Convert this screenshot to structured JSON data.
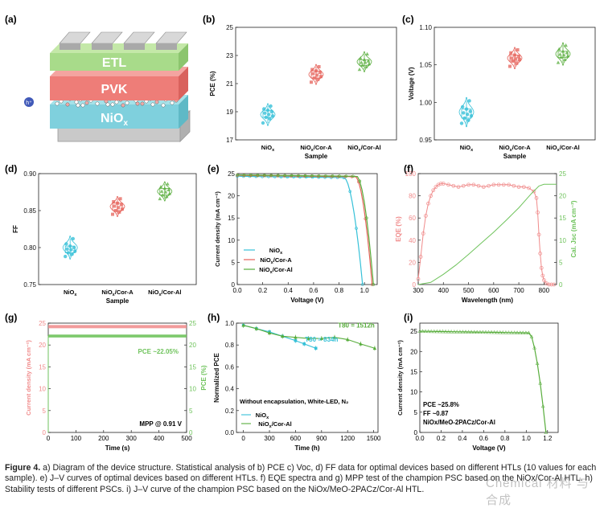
{
  "colors": {
    "nio": "#37c1d8",
    "cora": "#e5625a",
    "coral": "#58ad3c",
    "eqe": "#f08a8a",
    "jsc": "#6fc35c"
  },
  "panel_labels": {
    "a": "(a)",
    "b": "(b)",
    "c": "(c)",
    "d": "(d)",
    "e": "(e)",
    "f": "(f)",
    "g": "(g)",
    "h": "(h)",
    "i": "(i)"
  },
  "device": {
    "etl": "ETL",
    "pvk": "PVK",
    "nio": "NiO",
    "nio_sub": "x",
    "hole": "h⁺"
  },
  "samples": {
    "nio": "NiO",
    "nio_sub": "x",
    "cora_suffix": "/Cor-A",
    "coral_suffix": "/Cor-Al"
  },
  "chart_data": [
    {
      "id": "b",
      "type": "scatter",
      "ylabel": "PCE (%)",
      "xlabel": "Sample",
      "ylim": [
        17,
        25
      ],
      "yticks": [
        "17",
        "19",
        "21",
        "23",
        "25"
      ],
      "categories": [
        "NiOx",
        "NiOx/Cor-A",
        "NiOx/Cor-Al"
      ],
      "series": [
        {
          "name": "NiOx",
          "values": [
            18.2,
            18.5,
            18.6,
            18.7,
            18.8,
            18.9,
            19.0,
            19.1,
            19.2,
            19.4
          ]
        },
        {
          "name": "NiOx/Cor-A",
          "values": [
            21.1,
            21.3,
            21.4,
            21.5,
            21.6,
            21.7,
            21.8,
            21.9,
            22.0,
            22.2
          ]
        },
        {
          "name": "NiOx/Cor-Al",
          "values": [
            22.0,
            22.2,
            22.3,
            22.4,
            22.5,
            22.5,
            22.6,
            22.7,
            22.8,
            23.1
          ]
        }
      ]
    },
    {
      "id": "c",
      "type": "scatter",
      "ylabel": "Voltage (V)",
      "xlabel": "Sample",
      "ylim": [
        0.95,
        1.1
      ],
      "yticks": [
        "0.95",
        "1.00",
        "1.05",
        "1.10"
      ],
      "categories": [
        "NiOx",
        "NiOx/Cor-A",
        "NiOx/Cor-Al"
      ],
      "series": [
        {
          "name": "NiOx",
          "values": [
            0.972,
            0.976,
            0.979,
            0.982,
            0.984,
            0.986,
            0.988,
            0.991,
            0.994,
            1.002
          ]
        },
        {
          "name": "NiOx/Cor-A",
          "values": [
            1.048,
            1.052,
            1.055,
            1.057,
            1.058,
            1.059,
            1.061,
            1.063,
            1.066,
            1.07
          ]
        },
        {
          "name": "NiOx/Cor-Al",
          "values": [
            1.053,
            1.057,
            1.06,
            1.062,
            1.063,
            1.064,
            1.066,
            1.068,
            1.071,
            1.076
          ]
        }
      ]
    },
    {
      "id": "d",
      "type": "scatter",
      "ylabel": "FF",
      "xlabel": "Sample",
      "ylim": [
        0.75,
        0.9
      ],
      "yticks": [
        "0.75",
        "0.80",
        "0.85",
        "0.90"
      ],
      "categories": [
        "NiOx",
        "NiOx/Cor-A",
        "NiOx/Cor-Al"
      ],
      "series": [
        {
          "name": "NiOx",
          "values": [
            0.788,
            0.791,
            0.793,
            0.795,
            0.797,
            0.798,
            0.8,
            0.802,
            0.805,
            0.812
          ]
        },
        {
          "name": "NiOx/Cor-A",
          "values": [
            0.845,
            0.848,
            0.85,
            0.852,
            0.854,
            0.856,
            0.858,
            0.86,
            0.862,
            0.866
          ]
        },
        {
          "name": "NiOx/Cor-Al",
          "values": [
            0.866,
            0.869,
            0.871,
            0.873,
            0.875,
            0.876,
            0.878,
            0.88,
            0.882,
            0.886
          ]
        }
      ]
    },
    {
      "id": "e",
      "type": "line",
      "xlabel": "Voltage (V)",
      "ylabel": "Current density (mA cm⁻²)",
      "xlim": [
        0,
        1.1
      ],
      "ylim": [
        0,
        25
      ],
      "xticks": [
        "0.0",
        "0.2",
        "0.4",
        "0.6",
        "0.8",
        "1.0"
      ],
      "yticks": [
        "0",
        "5",
        "10",
        "15",
        "20",
        "25"
      ],
      "legend": [
        "NiOx",
        "NiOx/Cor-A",
        "NiOx/Cor-Al"
      ],
      "series": [
        {
          "name": "NiOx",
          "jsc": 24.4,
          "vknee": 0.84,
          "voc": 0.985
        },
        {
          "name": "NiOx/Cor-A",
          "jsc": 24.6,
          "vknee": 0.93,
          "voc": 1.06
        },
        {
          "name": "NiOx/Cor-Al",
          "jsc": 24.7,
          "vknee": 0.94,
          "voc": 1.07
        }
      ]
    },
    {
      "id": "f",
      "type": "line",
      "xlabel": "Wavelength (nm)",
      "ylabel": "EQE (%)",
      "y2label": "Cal. Jsc (mA cm⁻²)",
      "xlim": [
        300,
        850
      ],
      "ylim": [
        0,
        100
      ],
      "y2lim": [
        0,
        25
      ],
      "xticks": [
        "300",
        "400",
        "500",
        "600",
        "700",
        "800"
      ],
      "yticks": [
        "0",
        "20",
        "40",
        "60",
        "80",
        "100"
      ],
      "y2ticks": [
        "0",
        "5",
        "10",
        "15",
        "20",
        "25"
      ],
      "eqe": {
        "x": [
          300,
          310,
          320,
          330,
          340,
          350,
          360,
          370,
          380,
          390,
          400,
          420,
          440,
          460,
          480,
          500,
          520,
          540,
          560,
          580,
          600,
          620,
          640,
          660,
          680,
          700,
          720,
          740,
          760,
          770,
          775,
          780,
          785,
          790,
          795,
          800,
          810,
          820,
          830,
          840
        ],
        "y": [
          5,
          25,
          46,
          62,
          73,
          80,
          85,
          88,
          90,
          91,
          91,
          90,
          89,
          88,
          89,
          90,
          90,
          89,
          88,
          89,
          90,
          90,
          90,
          90,
          89,
          88,
          88,
          87,
          84,
          78,
          65,
          45,
          28,
          15,
          8,
          4,
          1,
          0,
          0,
          0
        ]
      },
      "cal_jsc": {
        "x": [
          300,
          350,
          400,
          450,
          500,
          550,
          600,
          650,
          700,
          750,
          780,
          800,
          850
        ],
        "y": [
          0,
          0.5,
          2.3,
          4.4,
          6.8,
          9.3,
          11.8,
          14.5,
          17.3,
          20.5,
          22.2,
          22.6,
          22.6
        ]
      }
    },
    {
      "id": "g",
      "type": "line",
      "xlabel": "Time (s)",
      "ylabel": "Current density (mA cm⁻²)",
      "y2label": "PCE (%)",
      "xlim": [
        0,
        500
      ],
      "ylim": [
        0,
        25
      ],
      "y2lim": [
        0,
        25
      ],
      "xticks": [
        "0",
        "100",
        "200",
        "300",
        "400",
        "500"
      ],
      "yticks": [
        "0",
        "5",
        "10",
        "15",
        "20",
        "25"
      ],
      "y2ticks": [
        "0",
        "5",
        "10",
        "15",
        "20",
        "25"
      ],
      "current": 24.2,
      "pce": 22.05,
      "annotation": "PCE ~22.05%",
      "mpp_label": "MPP @ 0.91 V"
    },
    {
      "id": "h",
      "type": "line",
      "xlabel": "Time (h)",
      "ylabel": "Normalized PCE",
      "xlim": [
        -80,
        1550
      ],
      "ylim": [
        0,
        1.0
      ],
      "xticks": [
        "0",
        "300",
        "600",
        "900",
        "1200",
        "1500"
      ],
      "yticks": [
        "0.0",
        "0.2",
        "0.4",
        "0.6",
        "0.8",
        "1.0"
      ],
      "series": [
        {
          "name": "NiOx",
          "x": [
            0,
            150,
            300,
            450,
            600,
            700,
            834
          ],
          "y": [
            0.98,
            0.95,
            0.92,
            0.88,
            0.84,
            0.81,
            0.77
          ]
        },
        {
          "name": "NiOx/Cor-Al",
          "x": [
            0,
            150,
            300,
            450,
            600,
            750,
            900,
            1050,
            1200,
            1350,
            1512
          ],
          "y": [
            0.98,
            0.95,
            0.91,
            0.88,
            0.87,
            0.86,
            0.86,
            0.87,
            0.85,
            0.81,
            0.77
          ]
        }
      ],
      "t80_nio": "T80 = 834h",
      "t80_coral": "T80 = 1512h",
      "note": "Without encapsulation, White-LED, N₂"
    },
    {
      "id": "i",
      "type": "line",
      "xlabel": "Voltage (V)",
      "ylabel": "Current density (mA cm⁻²)",
      "xlim": [
        0,
        1.3
      ],
      "ylim": [
        0,
        27
      ],
      "xticks": [
        "0.0",
        "0.2",
        "0.4",
        "0.6",
        "0.8",
        "1.0",
        "1.2"
      ],
      "yticks": [
        "0",
        "5",
        "10",
        "15",
        "20",
        "25"
      ],
      "jsc": 25.0,
      "vknee": 1.03,
      "voc": 1.185,
      "annot": [
        "PCE ~25.8%",
        "FF ~0.87",
        "NiOx/MeO-2PACz/Cor-Al"
      ]
    }
  ],
  "caption": {
    "fig": "Figure 4.",
    "text": "a) Diagram of the device structure. Statistical analysis of b) PCE c) Voc, d) FF data for optimal devices based on different HTLs (10 values for each sample). e) J–V curves of optimal devices based on different HTLs. f) EQE spectra and g) MPP test of the champion PSC based on the NiOx/Cor-Al HTL. h) Stability tests of different PSCs. i) J–V curve of the champion PSC based on the NiOx/MeO-2PACz/Cor-Al HTL."
  },
  "watermark": "Chemical 材料 与 合成"
}
